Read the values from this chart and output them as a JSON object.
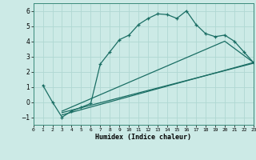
{
  "xlabel": "Humidex (Indice chaleur)",
  "bg_color": "#cceae6",
  "line_color": "#1a6e64",
  "grid_color": "#b0d8d2",
  "xlim": [
    0,
    23
  ],
  "ylim": [
    -1.5,
    6.5
  ],
  "xticks": [
    0,
    1,
    2,
    3,
    4,
    5,
    6,
    7,
    8,
    9,
    10,
    11,
    12,
    13,
    14,
    15,
    16,
    17,
    18,
    19,
    20,
    21,
    22,
    23
  ],
  "yticks": [
    -1,
    0,
    1,
    2,
    3,
    4,
    5,
    6
  ],
  "line1_x": [
    1,
    2,
    3,
    4,
    5,
    6,
    7,
    8,
    9,
    10,
    11,
    12,
    13,
    14,
    15,
    16,
    17,
    18,
    19,
    20,
    21,
    22,
    23
  ],
  "line1_y": [
    1.1,
    0.0,
    -1.0,
    -0.6,
    -0.35,
    -0.1,
    2.5,
    3.3,
    4.1,
    4.4,
    5.1,
    5.5,
    5.8,
    5.75,
    5.5,
    6.0,
    5.1,
    4.5,
    4.3,
    4.4,
    4.0,
    3.3,
    2.6
  ],
  "line2_x": [
    3,
    23
  ],
  "line2_y": [
    -0.85,
    2.6
  ],
  "line3_x": [
    3,
    23
  ],
  "line3_y": [
    -0.7,
    2.55
  ],
  "line4_x": [
    3,
    20,
    23
  ],
  "line4_y": [
    -0.6,
    4.0,
    2.6
  ]
}
